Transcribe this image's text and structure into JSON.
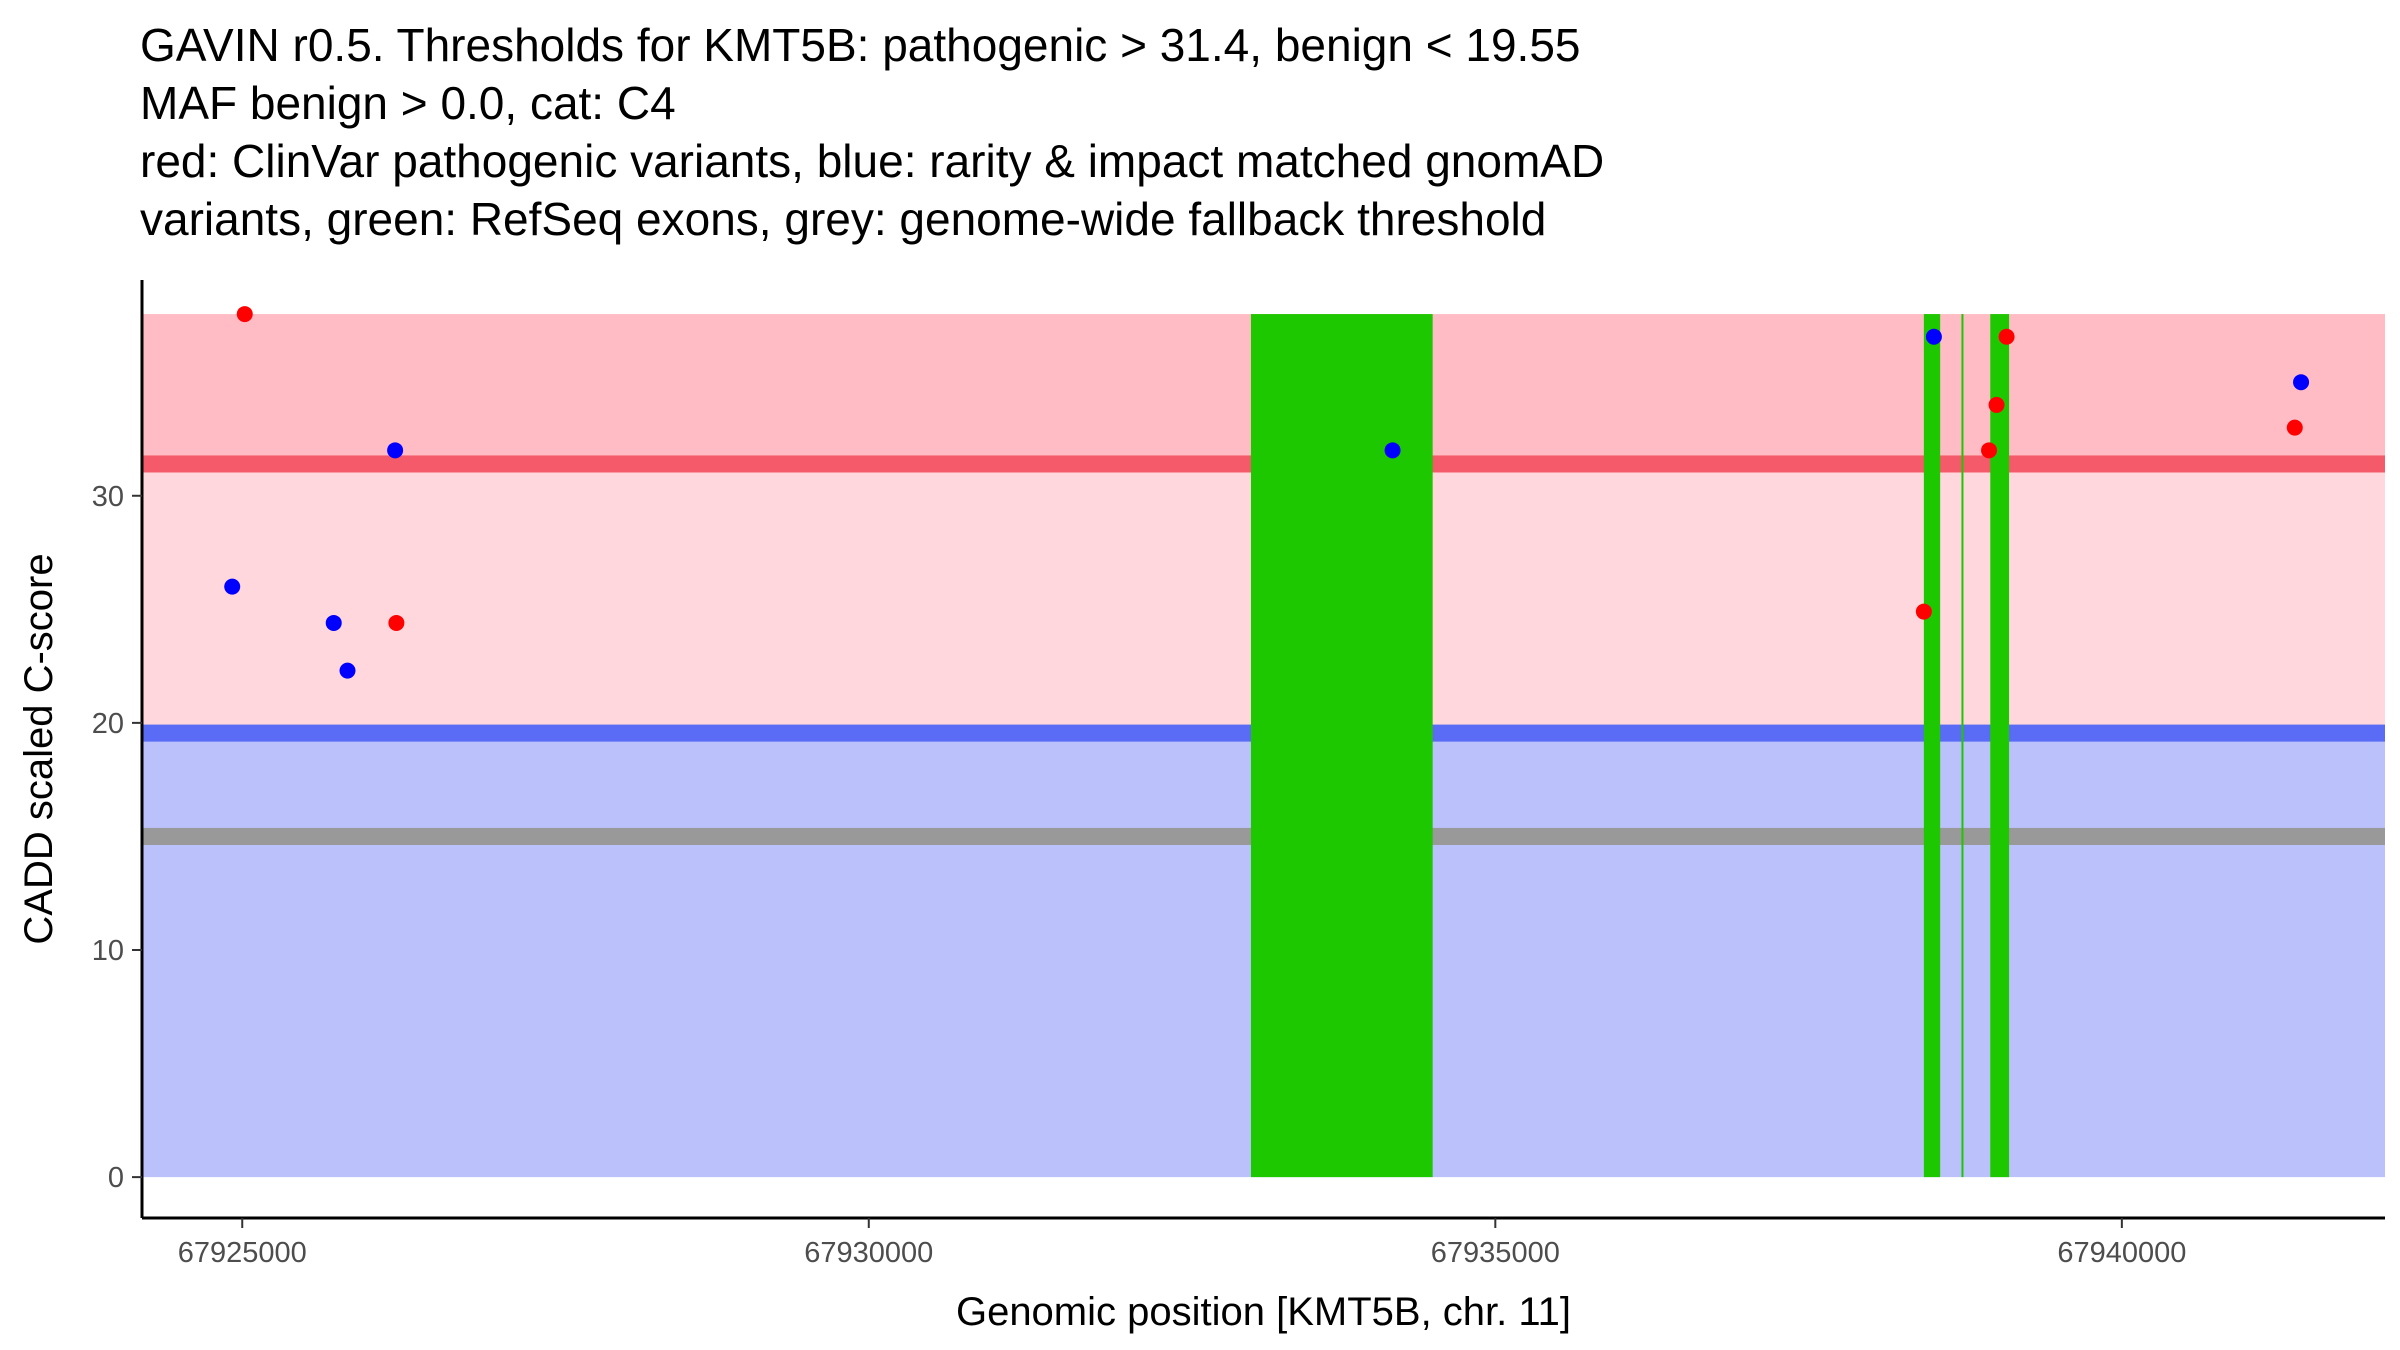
{
  "title_lines": [
    "GAVIN r0.5. Thresholds for KMT5B: pathogenic > 31.4, benign < 19.55",
    "MAF benign > 0.0, cat: C4",
    "red: ClinVar pathogenic variants, blue: rarity & impact matched gnomAD",
    "variants, green: RefSeq exons, grey: genome-wide fallback threshold"
  ],
  "chart_data": {
    "type": "scatter",
    "xlabel": "Genomic position [KMT5B, chr. 11]",
    "ylabel": "CADD scaled C-score",
    "xlim": [
      67924200,
      67942100
    ],
    "ylim": [
      -1.8,
      39.5
    ],
    "xticks": [
      67925000,
      67930000,
      67935000,
      67940000
    ],
    "xtick_labels": [
      "67925000",
      "67930000",
      "67935000",
      "67940000"
    ],
    "yticks": [
      0,
      10,
      20,
      30
    ],
    "ytick_labels": [
      "0",
      "10",
      "20",
      "30"
    ],
    "bands": [
      {
        "name": "pathogenic-upper-band",
        "ymin": 31.4,
        "ymax": 38,
        "color": "#ffbcc4"
      },
      {
        "name": "intermediate-band",
        "ymin": 19.55,
        "ymax": 31.4,
        "color": "#ffd7dd"
      },
      {
        "name": "benign-band",
        "ymin": 0,
        "ymax": 19.55,
        "color": "#bbc2fb"
      }
    ],
    "threshold_lines": [
      {
        "name": "pathogenic-threshold-line",
        "y": 31.4,
        "width": 0.75,
        "color": "#f55a6a"
      },
      {
        "name": "benign-threshold-line",
        "y": 19.55,
        "width": 0.75,
        "color": "#5a6cf5"
      },
      {
        "name": "fallback-threshold-line",
        "y": 15,
        "width": 0.75,
        "color": "#999999"
      }
    ],
    "exons": [
      {
        "start": 67933050,
        "end": 67934500,
        "ymin": 0,
        "ymax": 38,
        "color": "#1ec800"
      },
      {
        "start": 67938420,
        "end": 67938550,
        "ymin": 0,
        "ymax": 38,
        "color": "#1ec800"
      },
      {
        "start": 67938720,
        "end": 67938730,
        "ymin": 0,
        "ymax": 38,
        "color": "#1ec800"
      },
      {
        "start": 67938950,
        "end": 67939100,
        "ymin": 0,
        "ymax": 38,
        "color": "#1ec800"
      }
    ],
    "series": [
      {
        "name": "ClinVar pathogenic",
        "color": "#ff0000",
        "points": [
          {
            "x": 67925020,
            "y": 38
          },
          {
            "x": 67926230,
            "y": 24.4
          },
          {
            "x": 67938420,
            "y": 24.9
          },
          {
            "x": 67938940,
            "y": 32
          },
          {
            "x": 67939000,
            "y": 34
          },
          {
            "x": 67939080,
            "y": 37
          },
          {
            "x": 67941380,
            "y": 33
          }
        ]
      },
      {
        "name": "gnomAD matched",
        "color": "#0000ff",
        "points": [
          {
            "x": 67924920,
            "y": 26
          },
          {
            "x": 67925730,
            "y": 24.4
          },
          {
            "x": 67925840,
            "y": 22.3
          },
          {
            "x": 67926220,
            "y": 32
          },
          {
            "x": 67934180,
            "y": 32
          },
          {
            "x": 67938500,
            "y": 37
          },
          {
            "x": 67941430,
            "y": 35
          }
        ]
      }
    ]
  }
}
